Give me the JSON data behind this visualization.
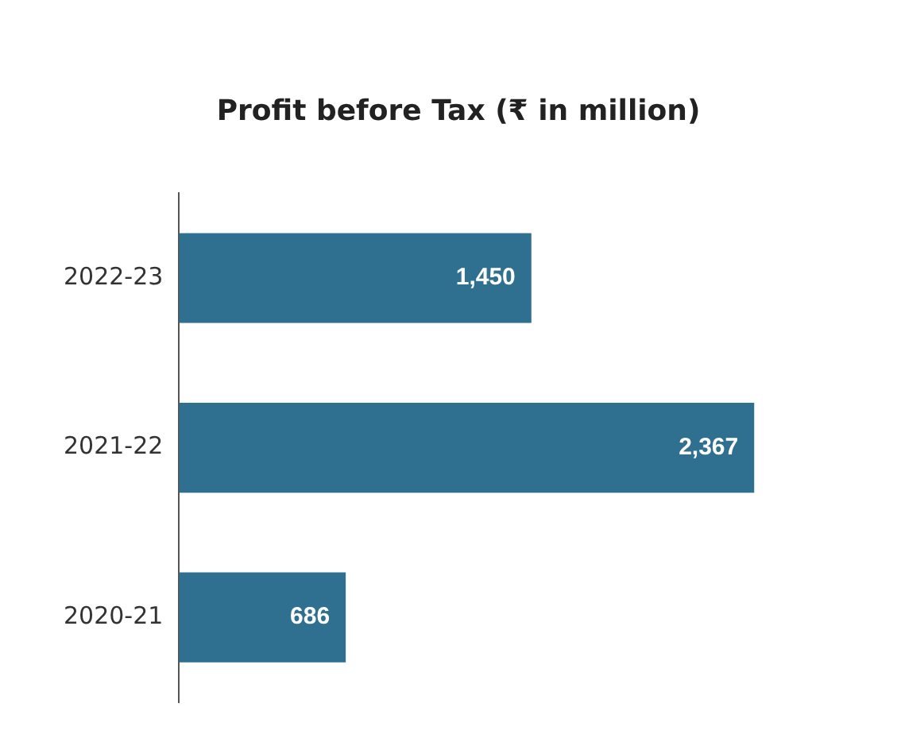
{
  "chart_data": {
    "type": "bar",
    "orientation": "horizontal",
    "title": "Profit before Tax (₹ in million)",
    "categories": [
      "2022-23",
      "2021-22",
      "2020-21"
    ],
    "values": [
      1450,
      2367,
      686
    ],
    "value_labels": [
      "1,450",
      "2,367",
      "686"
    ],
    "color": "#2f6f8f"
  }
}
